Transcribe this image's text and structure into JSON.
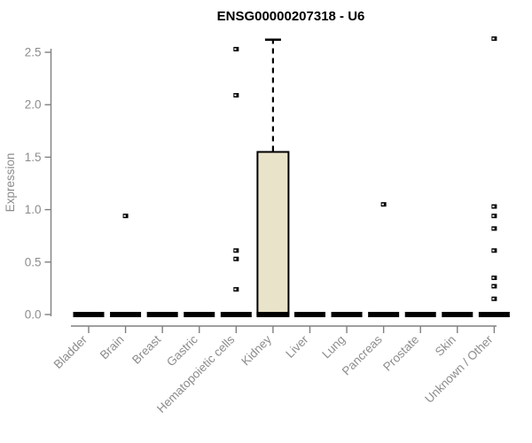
{
  "chart_data": {
    "type": "boxplot",
    "title": "ENSG00000207318 - U6",
    "ylabel": "Expression",
    "xlabel": "",
    "ylim": [
      0,
      2.65
    ],
    "yticks": [
      "0.0",
      "0.5",
      "1.0",
      "1.5",
      "2.0",
      "2.5"
    ],
    "grid": false,
    "legend": "none",
    "categories": [
      "Bladder",
      "Brain",
      "Breast",
      "Gastric",
      "Hematopoietic cells",
      "Kidney",
      "Liver",
      "Lung",
      "Pancreas",
      "Prostate",
      "Skin",
      "Unknown / Other"
    ],
    "boxes": [
      {
        "category": "Bladder",
        "q1": 0,
        "median": 0,
        "q3": 0,
        "whisker_low": 0,
        "whisker_high": 0,
        "outliers": []
      },
      {
        "category": "Brain",
        "q1": 0,
        "median": 0,
        "q3": 0,
        "whisker_low": 0,
        "whisker_high": 0,
        "outliers": [
          0.94
        ]
      },
      {
        "category": "Breast",
        "q1": 0,
        "median": 0,
        "q3": 0,
        "whisker_low": 0,
        "whisker_high": 0,
        "outliers": []
      },
      {
        "category": "Gastric",
        "q1": 0,
        "median": 0,
        "q3": 0,
        "whisker_low": 0,
        "whisker_high": 0,
        "outliers": []
      },
      {
        "category": "Hematopoietic cells",
        "q1": 0,
        "median": 0,
        "q3": 0,
        "whisker_low": 0,
        "whisker_high": 0,
        "outliers": [
          2.53,
          2.09,
          0.61,
          0.53,
          0.24
        ]
      },
      {
        "category": "Kidney",
        "q1": 0,
        "median": 0,
        "q3": 1.55,
        "whisker_low": 0,
        "whisker_high": 2.62,
        "outliers": []
      },
      {
        "category": "Liver",
        "q1": 0,
        "median": 0,
        "q3": 0,
        "whisker_low": 0,
        "whisker_high": 0,
        "outliers": []
      },
      {
        "category": "Lung",
        "q1": 0,
        "median": 0,
        "q3": 0,
        "whisker_low": 0,
        "whisker_high": 0,
        "outliers": []
      },
      {
        "category": "Pancreas",
        "q1": 0,
        "median": 0,
        "q3": 0,
        "whisker_low": 0,
        "whisker_high": 0,
        "outliers": [
          1.05
        ]
      },
      {
        "category": "Prostate",
        "q1": 0,
        "median": 0,
        "q3": 0,
        "whisker_low": 0,
        "whisker_high": 0,
        "outliers": []
      },
      {
        "category": "Skin",
        "q1": 0,
        "median": 0,
        "q3": 0,
        "whisker_low": 0,
        "whisker_high": 0,
        "outliers": []
      },
      {
        "category": "Unknown / Other",
        "q1": 0,
        "median": 0,
        "q3": 0,
        "whisker_low": 0,
        "whisker_high": 0,
        "outliers": [
          2.63,
          1.03,
          0.94,
          0.82,
          0.61,
          0.35,
          0.27,
          0.15
        ]
      }
    ],
    "colors": {
      "background": "#ffffff",
      "box_fill": "#e9e4c9",
      "box_stroke": "#000000",
      "axis_line": "#808080",
      "tick_text": "#8c8c8c",
      "title_text": "#000000"
    }
  }
}
